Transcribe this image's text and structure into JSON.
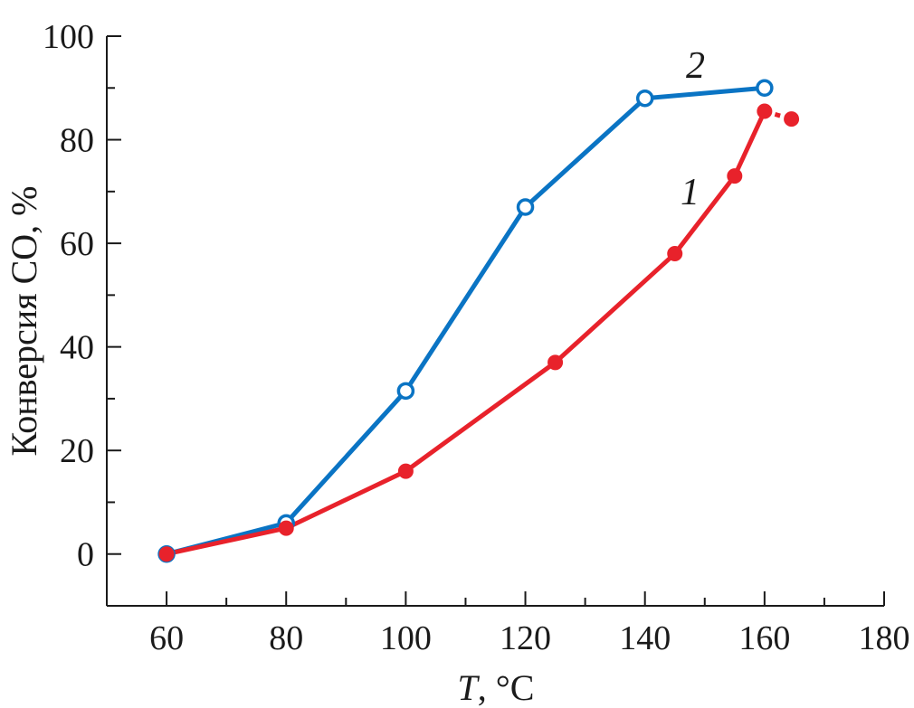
{
  "chart_data": {
    "type": "line",
    "xlabel_italic": "T",
    "xlabel_rest": ", °C",
    "ylabel": "Конверсия CO, %",
    "xlim": [
      50,
      180
    ],
    "ylim": [
      -10,
      100
    ],
    "xticks": [
      60,
      80,
      100,
      120,
      140,
      160,
      180
    ],
    "xticks_minor": [
      70,
      90,
      110,
      130,
      150,
      170
    ],
    "yticks": [
      0,
      20,
      40,
      60,
      80,
      100
    ],
    "yticks_minor": [
      -10,
      10,
      30,
      50,
      70,
      90
    ],
    "grid": false,
    "series": [
      {
        "name": "1",
        "color": "#e8222b",
        "marker": "filled-circle",
        "x": [
          60,
          80,
          100,
          125,
          145,
          155,
          160,
          164.5
        ],
        "y": [
          0,
          5,
          16,
          37,
          58,
          73,
          85.5,
          84
        ],
        "dashed_last_segment": true
      },
      {
        "name": "2",
        "color": "#0a74c4",
        "marker": "open-circle",
        "x": [
          60,
          80,
          100,
          120,
          140,
          160
        ],
        "y": [
          0,
          6,
          31.5,
          67,
          88,
          90
        ],
        "dashed_last_segment": false
      }
    ]
  }
}
